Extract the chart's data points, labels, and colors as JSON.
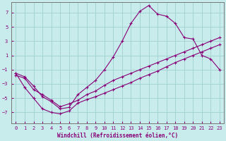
{
  "xlabel": "Windchill (Refroidissement éolien,°C)",
  "background_color": "#c8ecec",
  "grid_color": "#a0d0d0",
  "line_color": "#880077",
  "xlim": [
    -0.5,
    23.5
  ],
  "ylim": [
    -8.5,
    8.5
  ],
  "xticks": [
    0,
    1,
    2,
    3,
    4,
    5,
    6,
    7,
    8,
    9,
    10,
    11,
    12,
    13,
    14,
    15,
    16,
    17,
    18,
    19,
    20,
    21,
    22,
    23
  ],
  "yticks": [
    -7,
    -5,
    -3,
    -1,
    1,
    3,
    5,
    7
  ],
  "line1_x": [
    0,
    1,
    2,
    3,
    4,
    5,
    6,
    7,
    8,
    9,
    10,
    11,
    12,
    13,
    14,
    15,
    16,
    17,
    18,
    19,
    20,
    21,
    22,
    23
  ],
  "line1_y": [
    -1.5,
    -3.5,
    -5.0,
    -6.5,
    -7.0,
    -7.2,
    -6.8,
    -5.7,
    -5.2,
    -4.8,
    -4.3,
    -3.8,
    -3.3,
    -2.8,
    -2.2,
    -1.7,
    -1.2,
    -0.6,
    0.0,
    0.5,
    1.0,
    1.5,
    2.0,
    2.5
  ],
  "line2_x": [
    0,
    1,
    2,
    3,
    4,
    5,
    6,
    7,
    8,
    9,
    10,
    11,
    12,
    13,
    14,
    15,
    16,
    17,
    18,
    19,
    20,
    21,
    22,
    23
  ],
  "line2_y": [
    -1.8,
    -2.2,
    -3.8,
    -4.5,
    -5.3,
    -6.2,
    -5.8,
    -5.3,
    -4.5,
    -4.0,
    -3.2,
    -2.5,
    -2.0,
    -1.5,
    -1.0,
    -0.5,
    0.0,
    0.5,
    1.0,
    1.5,
    2.0,
    2.5,
    3.0,
    3.5
  ],
  "line3_x": [
    0,
    1,
    2,
    3,
    4,
    5,
    6,
    7,
    8,
    9,
    10,
    11,
    12,
    13,
    14,
    15,
    16,
    17,
    18,
    19,
    20,
    21,
    22,
    23
  ],
  "line3_y": [
    -1.5,
    -2.0,
    -3.3,
    -4.8,
    -5.5,
    -6.5,
    -6.3,
    -4.5,
    -3.5,
    -2.5,
    -1.0,
    0.8,
    3.0,
    5.5,
    7.2,
    8.0,
    6.8,
    6.5,
    5.5,
    3.5,
    3.3,
    1.0,
    0.5,
    -1.0
  ]
}
